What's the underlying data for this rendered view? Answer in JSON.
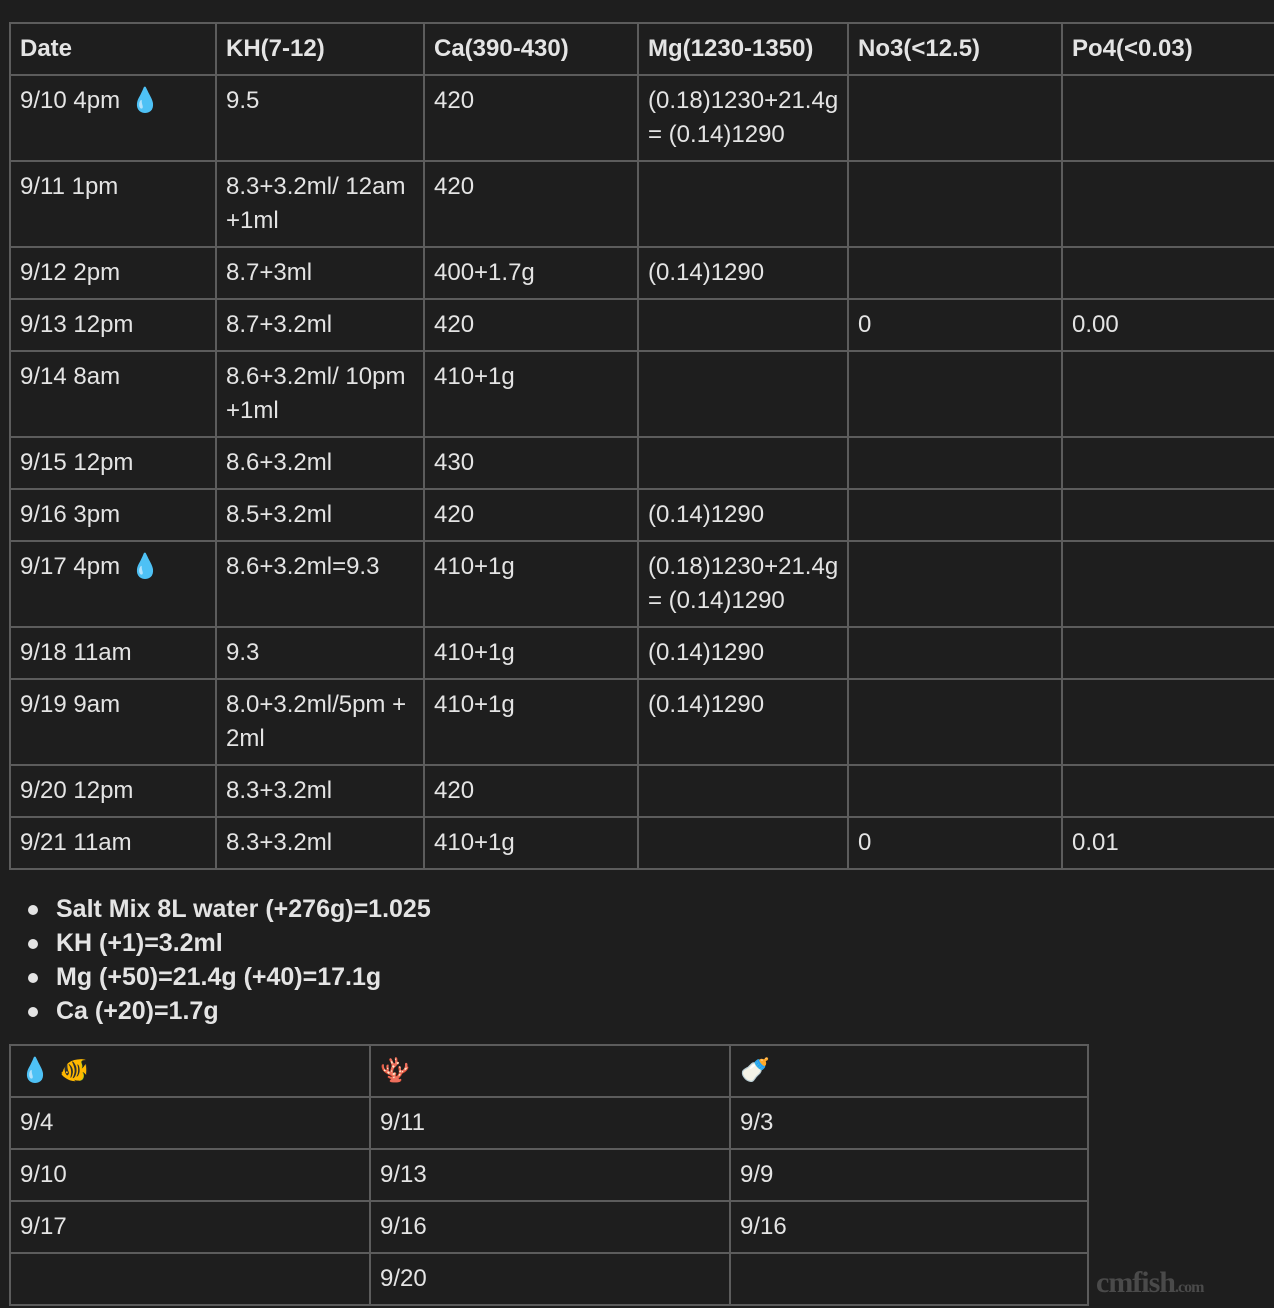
{
  "log_table": {
    "headers": [
      "Date",
      "KH(7-12)",
      "Ca(390-430)",
      "Mg(1230-1350)",
      "No3(<12.5)",
      "Po4(<0.03)"
    ],
    "rows": [
      {
        "date": "9/10 4pm",
        "icon": "water-drop",
        "kh": "9.5",
        "ca": "420",
        "mg": "(0.18)1230+21.4g= (0.14)1290",
        "no3": "",
        "po4": ""
      },
      {
        "date": "9/11 1pm",
        "icon": "",
        "kh": "8.3+3.2ml/ 12am+1ml",
        "ca": "420",
        "mg": "",
        "no3": "",
        "po4": ""
      },
      {
        "date": "9/12 2pm",
        "icon": "",
        "kh": "8.7+3ml",
        "ca": "400+1.7g",
        "mg": "(0.14)1290",
        "no3": "",
        "po4": ""
      },
      {
        "date": "9/13 12pm",
        "icon": "",
        "kh": "8.7+3.2ml",
        "ca": "420",
        "mg": "",
        "no3": "0",
        "po4": "0.00"
      },
      {
        "date": "9/14 8am",
        "icon": "",
        "kh": "8.6+3.2ml/ 10pm+1ml",
        "ca": "410+1g",
        "mg": "",
        "no3": "",
        "po4": ""
      },
      {
        "date": "9/15 12pm",
        "icon": "",
        "kh": "8.6+3.2ml",
        "ca": "430",
        "mg": "",
        "no3": "",
        "po4": ""
      },
      {
        "date": "9/16 3pm",
        "icon": "",
        "kh": "8.5+3.2ml",
        "ca": "420",
        "mg": "(0.14)1290",
        "no3": "",
        "po4": ""
      },
      {
        "date": "9/17 4pm",
        "icon": "water-drop",
        "kh": "8.6+3.2ml=9.3",
        "ca": "410+1g",
        "mg": "(0.18)1230+21.4g= (0.14)1290",
        "no3": "",
        "po4": ""
      },
      {
        "date": "9/18 11am",
        "icon": "",
        "kh": "9.3",
        "ca": "410+1g",
        "mg": "(0.14)1290",
        "no3": "",
        "po4": ""
      },
      {
        "date": "9/19 9am",
        "icon": "",
        "kh": "8.0+3.2ml/5pm +2ml",
        "ca": "410+1g",
        "mg": "(0.14)1290",
        "no3": "",
        "po4": ""
      },
      {
        "date": "9/20 12pm",
        "icon": "",
        "kh": "8.3+3.2ml",
        "ca": "420",
        "mg": "",
        "no3": "",
        "po4": ""
      },
      {
        "date": "9/21 11am",
        "icon": "",
        "kh": "8.3+3.2ml",
        "ca": "410+1g",
        "mg": "",
        "no3": "0",
        "po4": "0.01"
      }
    ]
  },
  "notes": [
    "Salt Mix 8L water (+276g)=1.025",
    "KH (+1)=3.2ml",
    "Mg (+50)=21.4g (+40)=17.1g",
    "Ca (+20)=1.7g"
  ],
  "schedule_table": {
    "headers": [
      {
        "icons": [
          "water-drop",
          "tropical-fish"
        ],
        "glyphs": [
          "💧",
          "🐠"
        ]
      },
      {
        "icons": [
          "coral"
        ],
        "glyphs": [
          "🪸"
        ]
      },
      {
        "icons": [
          "baby-bottle"
        ],
        "glyphs": [
          "🍼"
        ]
      }
    ],
    "rows": [
      [
        "9/4",
        "9/11",
        "9/3"
      ],
      [
        "9/10",
        "9/13",
        "9/9"
      ],
      [
        "9/17",
        "9/16",
        "9/16"
      ],
      [
        "",
        "9/20",
        ""
      ]
    ]
  },
  "watermark": "cmfish.com",
  "colors": {
    "background": "#1e1e1e",
    "border": "#5c5c5c",
    "text": "#e4e4e4",
    "drop": "#3ba6f0"
  }
}
